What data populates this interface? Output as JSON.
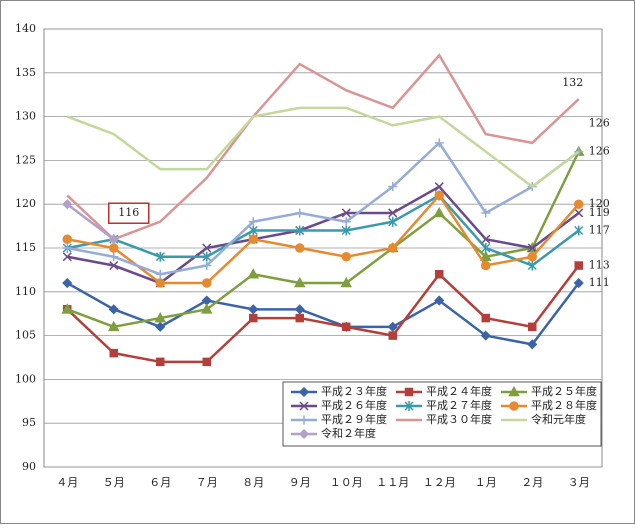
{
  "chart_data": {
    "type": "line",
    "categories": [
      "４月",
      "５月",
      "６月",
      "７月",
      "８月",
      "９月",
      "１０月",
      "１１月",
      "１２月",
      "１月",
      "２月",
      "３月"
    ],
    "ylim": [
      90,
      140
    ],
    "yticks": [
      90,
      95,
      100,
      105,
      110,
      115,
      120,
      125,
      130,
      135,
      140
    ],
    "grid": true,
    "series": [
      {
        "name": "平成２３年度",
        "color": "#3b64a8",
        "marker": "diamond",
        "end_label": true,
        "values": [
          111,
          108,
          106,
          109,
          108,
          108,
          106,
          106,
          109,
          105,
          104,
          111
        ]
      },
      {
        "name": "平成２４年度",
        "color": "#b33f3b",
        "marker": "square",
        "end_label": true,
        "values": [
          108,
          103,
          102,
          102,
          107,
          107,
          106,
          105,
          112,
          107,
          106,
          113
        ]
      },
      {
        "name": "平成２５年度",
        "color": "#7f9f3f",
        "marker": "triangle",
        "end_label": true,
        "values": [
          108,
          106,
          107,
          108,
          112,
          111,
          111,
          115,
          119,
          114,
          115,
          126
        ]
      },
      {
        "name": "平成２６年度",
        "color": "#6a4a8a",
        "marker": "x",
        "end_label": true,
        "values": [
          114,
          113,
          111,
          115,
          116,
          117,
          119,
          119,
          122,
          116,
          115,
          119
        ]
      },
      {
        "name": "平成２７年度",
        "color": "#3a9aab",
        "marker": "star",
        "end_label": true,
        "values": [
          115,
          116,
          114,
          114,
          117,
          117,
          117,
          118,
          121,
          115,
          113,
          117
        ]
      },
      {
        "name": "平成２８年度",
        "color": "#e48a30",
        "marker": "circle",
        "end_label": true,
        "values": [
          116,
          115,
          111,
          111,
          116,
          115,
          114,
          115,
          121,
          113,
          114,
          120
        ]
      },
      {
        "name": "平成２９年度",
        "color": "#95acd6",
        "marker": "plus",
        "end_label": false,
        "values": [
          115,
          114,
          112,
          113,
          118,
          119,
          118,
          122,
          127,
          119,
          122,
          126
        ]
      },
      {
        "name": "平成３０年度",
        "color": "#d99594",
        "marker": "none",
        "end_label": true,
        "values": [
          121,
          116,
          118,
          123,
          130,
          136,
          133,
          131,
          137,
          128,
          127,
          132
        ]
      },
      {
        "name": "令和元年度",
        "color": "#c4d89b",
        "marker": "none",
        "end_label": true,
        "values": [
          130,
          128,
          124,
          124,
          130,
          131,
          131,
          129,
          130,
          126,
          122,
          126
        ]
      },
      {
        "name": "令和２年度",
        "color": "#b1a0c7",
        "marker": "diamond",
        "end_label": false,
        "boxed_label_index": 1,
        "values": [
          120,
          116,
          null,
          null,
          null,
          null,
          null,
          null,
          null,
          null,
          null,
          null
        ]
      }
    ]
  }
}
